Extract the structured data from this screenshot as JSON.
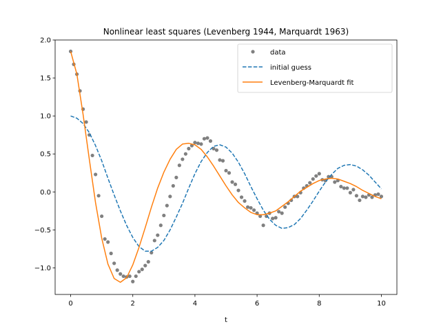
{
  "chart_data": {
    "type": "line",
    "title": "Nonlinear least squares (Levenberg 1944, Marquardt 1963)",
    "xlabel": "t",
    "ylabel": "",
    "xlim": [
      -0.5,
      10.5
    ],
    "ylim": [
      -1.35,
      2.0
    ],
    "xticks": [
      0,
      2,
      4,
      6,
      8,
      10
    ],
    "yticks": [
      -1.0,
      -0.5,
      0.0,
      0.5,
      1.0,
      1.5,
      2.0
    ],
    "grid": false,
    "legend_position": "top-right",
    "series": [
      {
        "name": "data",
        "kind": "scatter",
        "color": "#808080",
        "x": [
          0.0,
          0.1,
          0.2,
          0.3,
          0.4,
          0.5,
          0.6,
          0.7,
          0.8,
          0.9,
          1.0,
          1.1,
          1.2,
          1.3,
          1.4,
          1.5,
          1.6,
          1.7,
          1.8,
          1.9,
          2.0,
          2.1,
          2.2,
          2.3,
          2.4,
          2.5,
          2.6,
          2.7,
          2.8,
          2.9,
          3.0,
          3.1,
          3.2,
          3.3,
          3.4,
          3.5,
          3.6,
          3.7,
          3.8,
          3.9,
          4.0,
          4.1,
          4.2,
          4.3,
          4.4,
          4.5,
          4.6,
          4.7,
          4.8,
          4.9,
          5.0,
          5.1,
          5.2,
          5.3,
          5.4,
          5.5,
          5.6,
          5.7,
          5.8,
          5.9,
          6.0,
          6.1,
          6.2,
          6.3,
          6.4,
          6.5,
          6.6,
          6.7,
          6.8,
          6.9,
          7.0,
          7.1,
          7.2,
          7.3,
          7.4,
          7.5,
          7.6,
          7.7,
          7.8,
          7.9,
          8.0,
          8.1,
          8.2,
          8.3,
          8.4,
          8.5,
          8.6,
          8.7,
          8.8,
          8.9,
          9.0,
          9.1,
          9.2,
          9.3,
          9.4,
          9.5,
          9.6,
          9.7,
          9.8,
          9.9,
          10.0
        ],
        "y": [
          1.85,
          1.68,
          1.55,
          1.33,
          1.09,
          0.92,
          0.75,
          0.48,
          0.23,
          -0.05,
          -0.32,
          -0.62,
          -0.66,
          -0.81,
          -0.94,
          -1.03,
          -1.08,
          -1.11,
          -1.12,
          -1.11,
          -1.18,
          -1.11,
          -1.05,
          -1.02,
          -0.97,
          -0.92,
          -0.8,
          -0.64,
          -0.57,
          -0.44,
          -0.31,
          -0.18,
          -0.06,
          0.08,
          0.19,
          0.35,
          0.43,
          0.5,
          0.57,
          0.61,
          0.65,
          0.64,
          0.63,
          0.7,
          0.71,
          0.67,
          0.57,
          0.55,
          0.42,
          0.41,
          0.28,
          0.25,
          0.13,
          0.1,
          0.02,
          -0.07,
          -0.12,
          -0.2,
          -0.21,
          -0.24,
          -0.28,
          -0.32,
          -0.44,
          -0.32,
          -0.28,
          -0.35,
          -0.34,
          -0.26,
          -0.28,
          -0.2,
          -0.15,
          -0.11,
          -0.06,
          -0.06,
          -0.01,
          0.05,
          0.08,
          0.12,
          0.17,
          0.21,
          0.24,
          0.16,
          0.15,
          0.2,
          0.2,
          0.13,
          0.15,
          0.07,
          0.05,
          0.05,
          -0.01,
          0.03,
          -0.05,
          -0.11,
          -0.06,
          -0.07,
          -0.04,
          -0.07,
          -0.04,
          -0.03,
          -0.06
        ]
      },
      {
        "name": "initial guess",
        "kind": "line",
        "style": "dashed",
        "color": "#1f77b4",
        "x": [
          0.0,
          0.2,
          0.4,
          0.6,
          0.8,
          1.0,
          1.2,
          1.4,
          1.6,
          1.8,
          2.0,
          2.2,
          2.4,
          2.6,
          2.8,
          3.0,
          3.2,
          3.4,
          3.6,
          3.8,
          4.0,
          4.2,
          4.4,
          4.6,
          4.8,
          5.0,
          5.2,
          5.4,
          5.6,
          5.8,
          6.0,
          6.2,
          6.4,
          6.6,
          6.8,
          7.0,
          7.2,
          7.4,
          7.6,
          7.8,
          8.0,
          8.2,
          8.4,
          8.6,
          8.8,
          9.0,
          9.2,
          9.4,
          9.6,
          9.8,
          10.0
        ],
        "y": [
          1.0,
          0.97,
          0.9,
          0.78,
          0.61,
          0.41,
          0.18,
          -0.04,
          -0.25,
          -0.44,
          -0.6,
          -0.72,
          -0.78,
          -0.78,
          -0.73,
          -0.64,
          -0.5,
          -0.33,
          -0.15,
          0.05,
          0.24,
          0.4,
          0.52,
          0.6,
          0.62,
          0.59,
          0.51,
          0.39,
          0.24,
          0.07,
          -0.09,
          -0.24,
          -0.36,
          -0.44,
          -0.48,
          -0.47,
          -0.43,
          -0.35,
          -0.24,
          -0.12,
          0.01,
          0.13,
          0.23,
          0.31,
          0.35,
          0.36,
          0.34,
          0.29,
          0.22,
          0.13,
          0.04
        ]
      },
      {
        "name": "Levenberg-Marquardt fit",
        "kind": "line",
        "style": "solid",
        "color": "#ff7f0e",
        "x": [
          0.0,
          0.2,
          0.4,
          0.6,
          0.8,
          1.0,
          1.2,
          1.4,
          1.6,
          1.8,
          2.0,
          2.2,
          2.4,
          2.6,
          2.8,
          3.0,
          3.2,
          3.4,
          3.6,
          3.8,
          4.0,
          4.2,
          4.4,
          4.6,
          4.8,
          5.0,
          5.2,
          5.4,
          5.6,
          5.8,
          6.0,
          6.2,
          6.4,
          6.6,
          6.8,
          7.0,
          7.2,
          7.4,
          7.6,
          7.8,
          8.0,
          8.2,
          8.4,
          8.6,
          8.8,
          9.0,
          9.2,
          9.4,
          9.6,
          9.8,
          10.0
        ],
        "y": [
          1.85,
          1.55,
          1.02,
          0.43,
          -0.14,
          -0.61,
          -0.95,
          -1.14,
          -1.19,
          -1.13,
          -0.96,
          -0.73,
          -0.47,
          -0.2,
          0.05,
          0.26,
          0.43,
          0.56,
          0.63,
          0.64,
          0.62,
          0.56,
          0.46,
          0.34,
          0.21,
          0.08,
          -0.04,
          -0.14,
          -0.21,
          -0.27,
          -0.3,
          -0.3,
          -0.28,
          -0.25,
          -0.19,
          -0.13,
          -0.06,
          0.01,
          0.06,
          0.11,
          0.15,
          0.17,
          0.18,
          0.17,
          0.14,
          0.11,
          0.07,
          0.02,
          -0.02,
          -0.06,
          -0.09
        ]
      }
    ]
  }
}
